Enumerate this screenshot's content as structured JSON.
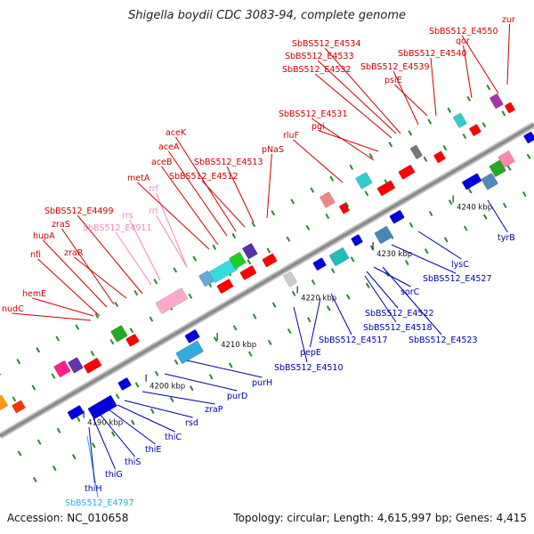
{
  "title": "Shigella boydii CDC 3083-94, complete genome",
  "accession": "Accession: NC_010658",
  "summary": "Topology: circular; Length: 4,615,997 bp; Genes: 4,415",
  "colors": {
    "forward_label": "#cc0000",
    "reverse_label": "#0000aa",
    "rna_label": "#ee88bb",
    "pseudo_label": "#33aadd",
    "backbone": "#999999",
    "tick": "#2a8a2a"
  },
  "ticks": [
    {
      "label": "4190 kbp"
    },
    {
      "label": "4200 kbp"
    },
    {
      "label": "4210 kbp"
    },
    {
      "label": "4220 kbp"
    },
    {
      "label": "4230 kbp"
    },
    {
      "label": "4240 kbp"
    }
  ],
  "forward_labels": [
    {
      "text": "nudC",
      "kind": "forward"
    },
    {
      "text": "hemE",
      "kind": "forward"
    },
    {
      "text": "nfi",
      "kind": "forward"
    },
    {
      "text": "hupA",
      "kind": "forward"
    },
    {
      "text": "zraS",
      "kind": "forward"
    },
    {
      "text": "zraR",
      "kind": "forward"
    },
    {
      "text": "SbBS512_E4499",
      "kind": "forward"
    },
    {
      "text": "SbBS512_E4911",
      "kind": "rna"
    },
    {
      "text": "rrs",
      "kind": "rna"
    },
    {
      "text": "rrf",
      "kind": "rna"
    },
    {
      "text": "rrl",
      "kind": "rna"
    },
    {
      "text": "metA",
      "kind": "forward"
    },
    {
      "text": "aceB",
      "kind": "forward"
    },
    {
      "text": "aceA",
      "kind": "forward"
    },
    {
      "text": "aceK",
      "kind": "forward"
    },
    {
      "text": "SbBS512_E4512",
      "kind": "forward"
    },
    {
      "text": "SbBS512_E4513",
      "kind": "forward"
    },
    {
      "text": "pNaS",
      "kind": "forward"
    },
    {
      "text": "rluF",
      "kind": "forward"
    },
    {
      "text": "SbBS512_E4531",
      "kind": "forward"
    },
    {
      "text": "pgi",
      "kind": "forward"
    },
    {
      "text": "SbBS512_E4532",
      "kind": "forward"
    },
    {
      "text": "SbBS512_E4533",
      "kind": "forward"
    },
    {
      "text": "SbBS512_E4534",
      "kind": "forward"
    },
    {
      "text": "SbBS512_E4539",
      "kind": "forward"
    },
    {
      "text": "psiE",
      "kind": "forward"
    },
    {
      "text": "SbBS512_E4540",
      "kind": "forward"
    },
    {
      "text": "qor",
      "kind": "forward"
    },
    {
      "text": "SbBS512_E4550",
      "kind": "forward"
    },
    {
      "text": "zur",
      "kind": "forward"
    }
  ],
  "reverse_labels": [
    {
      "text": "SbBS512_E4797",
      "kind": "pseudo"
    },
    {
      "text": "thiH",
      "kind": "reverse"
    },
    {
      "text": "thiG",
      "kind": "reverse"
    },
    {
      "text": "thiS",
      "kind": "reverse"
    },
    {
      "text": "thiE",
      "kind": "reverse"
    },
    {
      "text": "thiC",
      "kind": "reverse"
    },
    {
      "text": "rsd",
      "kind": "reverse"
    },
    {
      "text": "zraP",
      "kind": "reverse"
    },
    {
      "text": "purD",
      "kind": "reverse"
    },
    {
      "text": "purH",
      "kind": "reverse"
    },
    {
      "text": "SbBS512_E4510",
      "kind": "reverse"
    },
    {
      "text": "pepE",
      "kind": "reverse"
    },
    {
      "text": "SbBS512_E4517",
      "kind": "reverse"
    },
    {
      "text": "SbBS512_E4518",
      "kind": "reverse"
    },
    {
      "text": "SbBS512_E4522",
      "kind": "reverse"
    },
    {
      "text": "sorC",
      "kind": "reverse"
    },
    {
      "text": "SbBS512_E4523",
      "kind": "reverse"
    },
    {
      "text": "SbBS512_E4527",
      "kind": "reverse"
    },
    {
      "text": "lysC",
      "kind": "reverse"
    },
    {
      "text": "tyrB",
      "kind": "reverse"
    }
  ]
}
